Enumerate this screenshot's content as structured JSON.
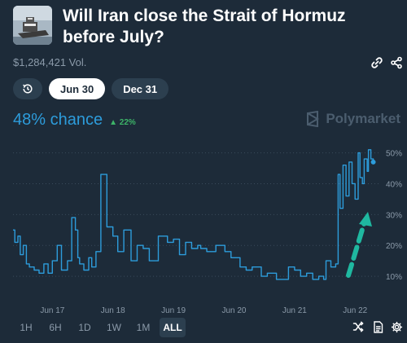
{
  "market": {
    "title": "Will Iran close the Strait of Hormuz before July?",
    "volume": "$1,284,421 Vol."
  },
  "tabs": [
    {
      "label": "",
      "icon": "history-icon"
    },
    {
      "label": "Jun 30",
      "active": true
    },
    {
      "label": "Dec 31"
    }
  ],
  "chance": {
    "value": "48% chance",
    "change": "22%",
    "change_color": "#3db468"
  },
  "brand": {
    "name": "Polymarket"
  },
  "timeframes": [
    {
      "label": "1H"
    },
    {
      "label": "6H"
    },
    {
      "label": "1D"
    },
    {
      "label": "1W"
    },
    {
      "label": "1M"
    },
    {
      "label": "ALL",
      "active": true
    }
  ],
  "icons": {
    "top_right": [
      "link-icon",
      "share-icon"
    ],
    "bottom_right": [
      "shuffle-icon",
      "document-icon",
      "settings-icon"
    ]
  },
  "colors": {
    "background": "#1d2b39",
    "line": "#2d9cdb",
    "arrow": "#1fb8a0",
    "muted": "#8b9aa9"
  },
  "chart_data": {
    "type": "line",
    "x_ticks": [
      "Jun 17",
      "Jun 18",
      "Jun 19",
      "Jun 20",
      "Jun 21",
      "Jun 22"
    ],
    "y_ticks": [
      "10%",
      "20%",
      "30%",
      "40%",
      "50%"
    ],
    "ylim": [
      5,
      52
    ],
    "xlim": [
      16.35,
      22.4
    ],
    "grid": "horizontal-dotted",
    "series": [
      {
        "x": [
          16.35,
          16.38,
          16.43,
          16.47,
          16.52,
          16.57,
          16.62,
          16.7,
          16.78,
          16.86,
          16.93,
          17.0,
          17.08,
          17.15,
          17.25,
          17.32,
          17.38,
          17.42,
          17.45,
          17.52,
          17.6,
          17.65,
          17.72,
          17.8,
          17.9,
          18.0,
          18.08,
          18.18,
          18.3,
          18.4,
          18.5,
          18.6,
          18.75,
          18.9,
          19.0,
          19.1,
          19.2,
          19.3,
          19.4,
          19.45,
          19.55,
          19.7,
          19.85,
          19.95,
          20.1,
          20.2,
          20.3,
          20.45,
          20.55,
          20.7,
          20.8,
          20.9,
          21.0,
          21.1,
          21.2,
          21.3,
          21.4,
          21.48,
          21.52,
          21.6,
          21.68,
          21.72,
          21.75,
          21.8,
          21.85,
          21.9,
          21.95,
          22.0,
          22.05,
          22.08,
          22.12,
          22.15,
          22.2,
          22.22,
          22.26,
          22.3
        ],
        "y": [
          25,
          21,
          23,
          17,
          20,
          14,
          13,
          12,
          11,
          14,
          11,
          15,
          20,
          12,
          15,
          29,
          25,
          16,
          14,
          12,
          16,
          13,
          18,
          43,
          26,
          23,
          18,
          25,
          15,
          20,
          19,
          15,
          23,
          21,
          22,
          17,
          21,
          19,
          20,
          19,
          18,
          20,
          18,
          16,
          13,
          12,
          13,
          10,
          11,
          9,
          9,
          13,
          12,
          10,
          11,
          9,
          10,
          9,
          15,
          13,
          14,
          43,
          32,
          46,
          36,
          47,
          40,
          35,
          50,
          42,
          40,
          48,
          44,
          51,
          48,
          47
        ]
      }
    ]
  }
}
